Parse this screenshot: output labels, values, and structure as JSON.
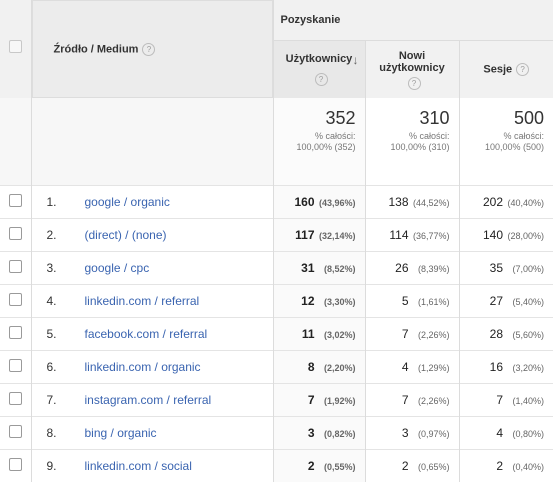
{
  "header": {
    "group_title": "Pozyskanie",
    "dimension_label": "Źródło / Medium",
    "help_glyph": "?",
    "metrics": [
      {
        "line1": "Użytkownicy",
        "line2": "",
        "sorted": true
      },
      {
        "line1": "Nowi",
        "line2": "użytkownicy",
        "sorted": false
      },
      {
        "line1": "Sesje",
        "line2": "",
        "sorted": false
      }
    ],
    "sort_icon": "↓"
  },
  "totals": [
    {
      "value": "352",
      "label": "% całości:",
      "detail": "100,00% (352)"
    },
    {
      "value": "310",
      "label": "% całości:",
      "detail": "100,00% (310)"
    },
    {
      "value": "500",
      "label": "% całości:",
      "detail": "100,00% (500)"
    }
  ],
  "rows": [
    {
      "idx": "1.",
      "source": "google / organic",
      "users": "160",
      "users_pct": "(43,96%)",
      "new_users": "138",
      "new_users_pct": "(44,52%)",
      "sessions": "202",
      "sessions_pct": "(40,40%)"
    },
    {
      "idx": "2.",
      "source": "(direct) / (none)",
      "users": "117",
      "users_pct": "(32,14%)",
      "new_users": "114",
      "new_users_pct": "(36,77%)",
      "sessions": "140",
      "sessions_pct": "(28,00%)"
    },
    {
      "idx": "3.",
      "source": "google / cpc",
      "users": "31",
      "users_pct": "(8,52%)",
      "new_users": "26",
      "new_users_pct": "(8,39%)",
      "sessions": "35",
      "sessions_pct": "(7,00%)"
    },
    {
      "idx": "4.",
      "source": "linkedin.com / referral",
      "users": "12",
      "users_pct": "(3,30%)",
      "new_users": "5",
      "new_users_pct": "(1,61%)",
      "sessions": "27",
      "sessions_pct": "(5,40%)"
    },
    {
      "idx": "5.",
      "source": "facebook.com / referral",
      "users": "11",
      "users_pct": "(3,02%)",
      "new_users": "7",
      "new_users_pct": "(2,26%)",
      "sessions": "28",
      "sessions_pct": "(5,60%)"
    },
    {
      "idx": "6.",
      "source": "linkedin.com / organic",
      "users": "8",
      "users_pct": "(2,20%)",
      "new_users": "4",
      "new_users_pct": "(1,29%)",
      "sessions": "16",
      "sessions_pct": "(3,20%)"
    },
    {
      "idx": "7.",
      "source": "instagram.com / referral",
      "users": "7",
      "users_pct": "(1,92%)",
      "new_users": "7",
      "new_users_pct": "(2,26%)",
      "sessions": "7",
      "sessions_pct": "(1,40%)"
    },
    {
      "idx": "8.",
      "source": "bing / organic",
      "users": "3",
      "users_pct": "(0,82%)",
      "new_users": "3",
      "new_users_pct": "(0,97%)",
      "sessions": "4",
      "sessions_pct": "(0,80%)"
    },
    {
      "idx": "9.",
      "source": "linkedin.com / social",
      "users": "2",
      "users_pct": "(0,55%)",
      "new_users": "2",
      "new_users_pct": "(0,65%)",
      "sessions": "2",
      "sessions_pct": "(0,40%)"
    }
  ]
}
